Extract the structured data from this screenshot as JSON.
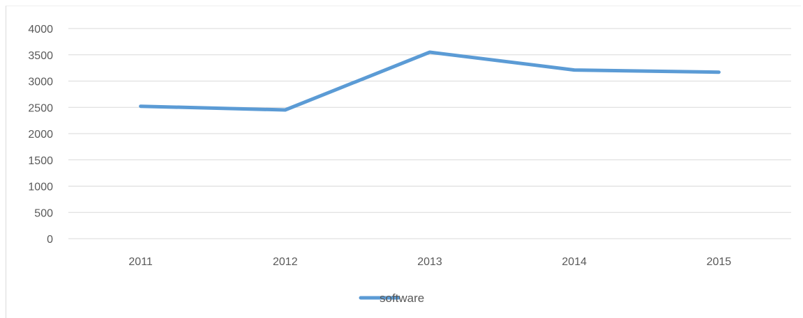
{
  "chart_data": {
    "type": "line",
    "categories": [
      "2011",
      "2012",
      "2013",
      "2014",
      "2015"
    ],
    "series": [
      {
        "name": "software",
        "values": [
          2520,
          2450,
          3550,
          3210,
          3170
        ],
        "color": "#5b9bd5"
      }
    ],
    "ylim": [
      0,
      4000
    ],
    "yticks": [
      0,
      500,
      1000,
      1500,
      2000,
      2500,
      3000,
      3500,
      4000
    ],
    "grid": true,
    "legend_position": "bottom",
    "gridline_color": "#d9d9d9",
    "text_color": "#595959"
  }
}
